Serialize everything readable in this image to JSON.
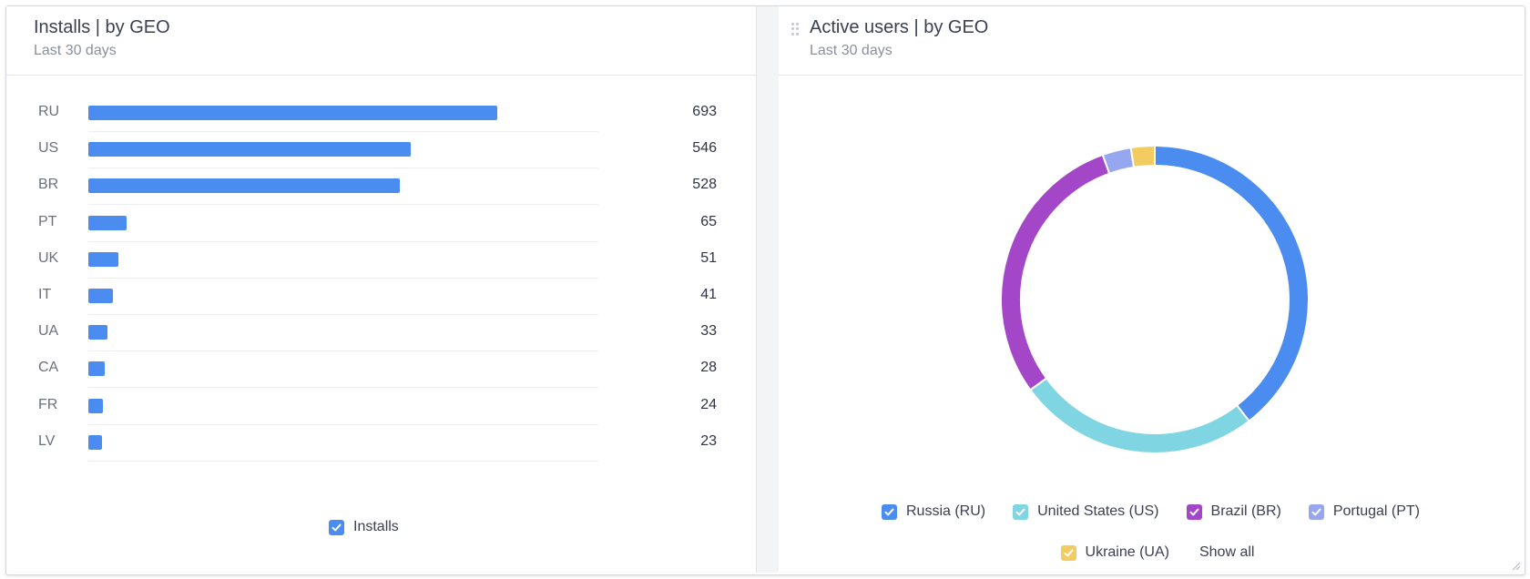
{
  "left_panel": {
    "title": "Installs | by GEO",
    "subtitle": "Last 30 days",
    "legend_label": "Installs"
  },
  "right_panel": {
    "title": "Active users | by GEO",
    "subtitle": "Last 30 days",
    "show_all_label": "Show all"
  },
  "colors": {
    "bar": "#4b8cf0",
    "russia": "#4b8cf0",
    "us": "#80d5e2",
    "brazil": "#a347c8",
    "portugal": "#96a7ef",
    "ukraine": "#f2cb61"
  },
  "chart_data": [
    {
      "type": "bar",
      "orientation": "horizontal",
      "categories": [
        "RU",
        "US",
        "BR",
        "PT",
        "UK",
        "IT",
        "UA",
        "CA",
        "FR",
        "LV"
      ],
      "series": [
        {
          "name": "Installs",
          "values": [
            693,
            546,
            528,
            65,
            51,
            41,
            33,
            28,
            24,
            23
          ]
        }
      ],
      "xlim": [
        0,
        864
      ]
    },
    {
      "type": "pie",
      "donut": true,
      "labels": [
        "Russia (RU)",
        "United States (US)",
        "Brazil (BR)",
        "Portugal (PT)",
        "Ukraine (UA)"
      ],
      "values": [
        39.5,
        25.5,
        29.5,
        3.0,
        2.5
      ],
      "legend": "bottom"
    }
  ]
}
